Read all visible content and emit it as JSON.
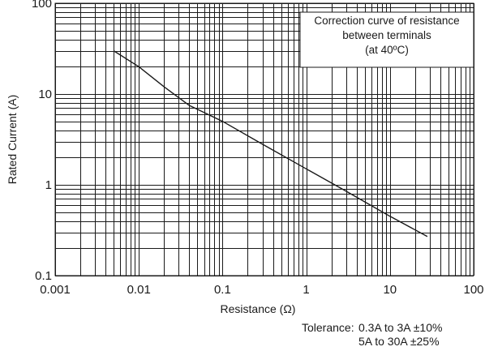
{
  "chart_data": {
    "type": "line",
    "scale": {
      "x": "log",
      "y": "log"
    },
    "xlabel": "Resistance (Ω)",
    "ylabel": "Rated Current (A)",
    "xlim": [
      0.001,
      100
    ],
    "ylim": [
      0.1,
      100
    ],
    "grid": true,
    "x_ticks": [
      0.001,
      0.01,
      0.1,
      1,
      10,
      100
    ],
    "x_tick_labels": [
      "0.001",
      "0.01",
      "0.1",
      "1",
      "10",
      "100"
    ],
    "y_ticks": [
      0.1,
      1,
      10,
      100
    ],
    "y_tick_labels": [
      "0.1",
      "1",
      "10",
      "100"
    ],
    "series": [
      {
        "x": [
          0.005,
          0.01,
          0.02,
          0.04,
          0.1,
          0.3,
          1,
          3,
          10,
          28
        ],
        "y": [
          30,
          20,
          12,
          7.5,
          5,
          2.8,
          1.5,
          0.85,
          0.45,
          0.27
        ]
      }
    ],
    "annotation_lines": [
      "Correction curve of resistance",
      "between terminals",
      "(at 40ºC)"
    ]
  },
  "tolerance": {
    "label": "Tolerance:",
    "lines": [
      "0.3A to 3A ±10%",
      "5A to 30A ±25%"
    ]
  }
}
